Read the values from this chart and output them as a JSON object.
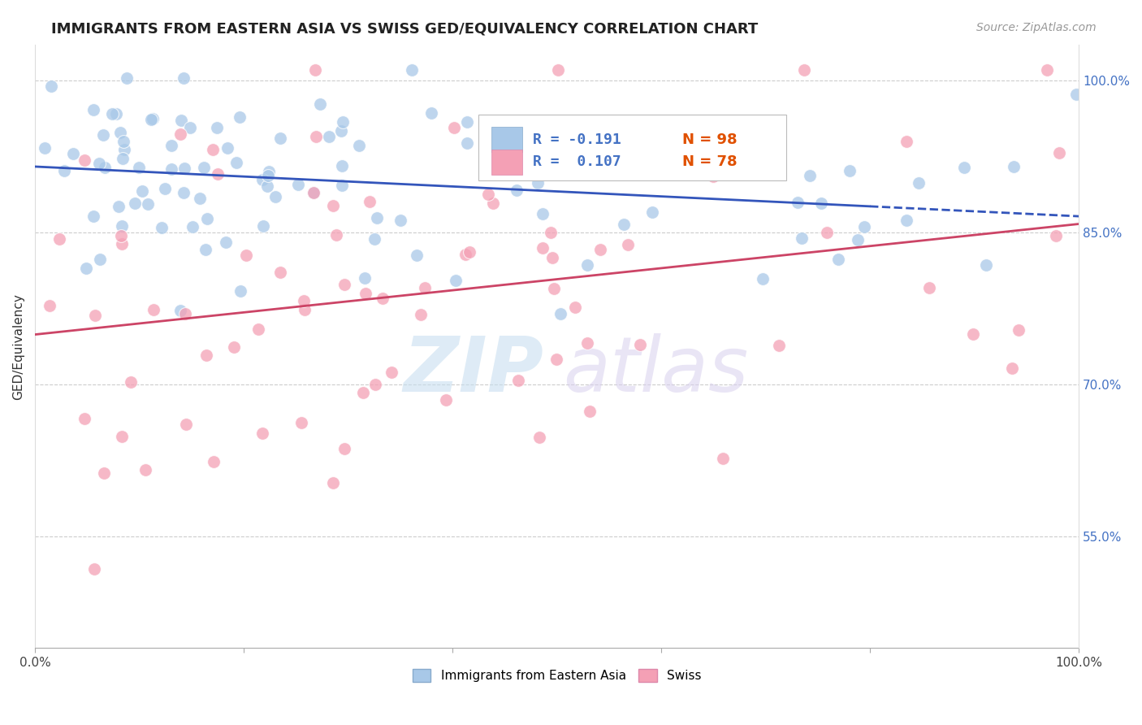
{
  "title": "IMMIGRANTS FROM EASTERN ASIA VS SWISS GED/EQUIVALENCY CORRELATION CHART",
  "source": "Source: ZipAtlas.com",
  "ylabel": "GED/Equivalency",
  "xlim": [
    0.0,
    1.0
  ],
  "ylim": [
    0.44,
    1.035
  ],
  "x_ticks": [
    0.0,
    0.2,
    0.4,
    0.6,
    0.8,
    1.0
  ],
  "x_tick_labels": [
    "0.0%",
    "",
    "",
    "",
    "",
    "100.0%"
  ],
  "y_tick_values_right": [
    0.55,
    0.7,
    0.85,
    1.0
  ],
  "y_tick_labels_right": [
    "55.0%",
    "70.0%",
    "85.0%",
    "100.0%"
  ],
  "blue_color": "#A8C8E8",
  "pink_color": "#F4A0B5",
  "blue_line_color": "#3355BB",
  "pink_line_color": "#CC4466",
  "legend_r1_text": "R = -0.191",
  "legend_n1_text": "N = 98",
  "legend_r2_text": "R =  0.107",
  "legend_n2_text": "N = 78",
  "legend_color_blue": "#4472C4",
  "legend_color_n": "#E05000",
  "blue_seed": 10,
  "pink_seed": 20,
  "watermark_zip_color": "#C8DFF0",
  "watermark_atlas_color": "#D8D0EE",
  "grid_color": "#CCCCCC",
  "title_fontsize": 13,
  "axis_label_fontsize": 11,
  "legend_fontsize": 13,
  "scatter_size": 130,
  "scatter_alpha": 0.75
}
